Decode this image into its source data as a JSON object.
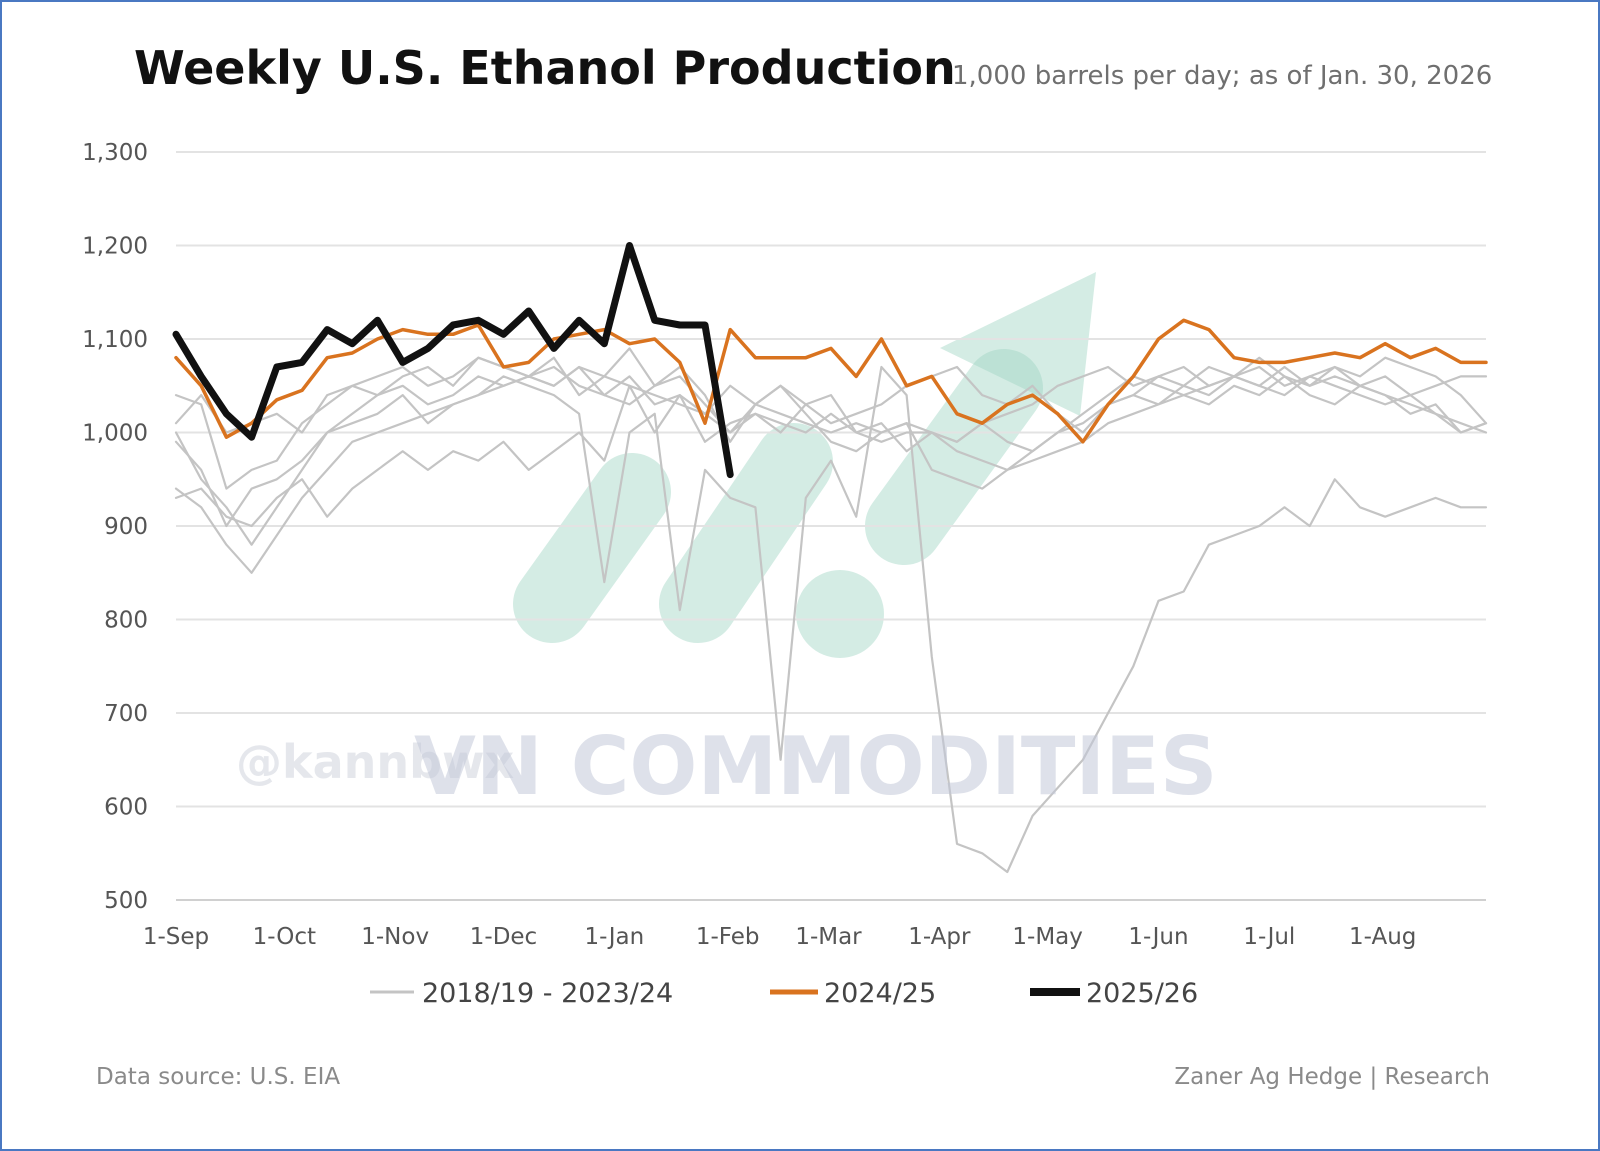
{
  "colors": {
    "history": "#c4c4c4",
    "y2024": "#d9731f",
    "y2025": "#111111",
    "grid": "#e3e3e3",
    "watermark_arrow": "#9fd4c4"
  },
  "watermark": {
    "brand": "VN COMMODITIES",
    "handle": "@kannbwx"
  },
  "chart_data": {
    "type": "line",
    "title": "Weekly U.S. Ethanol Production",
    "subtitle": "1,000 barrels per day; as of Jan. 30, 2026",
    "xlabel": "",
    "ylabel": "",
    "ylim": [
      500,
      1300
    ],
    "yticks": [
      500,
      600,
      700,
      800,
      900,
      1000,
      1100,
      1200,
      1300
    ],
    "ytick_labels": [
      "500",
      "600",
      "700",
      "800",
      "900",
      "1,000",
      "1,100",
      "1,200",
      "1,300"
    ],
    "x_unit": "week of marketing year (week 0 = 1-Sep)",
    "x_range": [
      0,
      52
    ],
    "xtick_positions": [
      0,
      4.3,
      8.7,
      13,
      17.4,
      21.9,
      25.9,
      30.3,
      34.6,
      39,
      43.4,
      47.9
    ],
    "xtick_labels": [
      "1-Sep",
      "1-Oct",
      "1-Nov",
      "1-Dec",
      "1-Jan",
      "1-Feb",
      "1-Mar",
      "1-Apr",
      "1-May",
      "1-Jun",
      "1-Jul",
      "1-Aug"
    ],
    "grid": true,
    "legend_position": "bottom",
    "legend": [
      "2018/19 - 2023/24",
      "2024/25",
      "2025/26"
    ],
    "series": [
      {
        "group": "history",
        "legend": "2018/19 - 2023/24",
        "x": [
          0,
          1,
          2,
          3,
          4,
          5,
          6,
          7,
          8,
          9,
          10,
          11,
          12,
          13,
          14,
          15,
          16,
          17,
          18,
          19,
          20,
          21,
          22,
          23,
          24,
          25,
          26,
          27,
          28,
          29,
          30,
          31,
          32,
          33,
          34,
          35,
          36,
          37,
          38,
          39,
          40,
          41,
          42,
          43,
          44,
          45,
          46,
          47,
          48,
          49,
          50,
          51,
          52
        ],
        "values": [
          1010,
          1040,
          1000,
          1010,
          1020,
          1000,
          1040,
          1050,
          1060,
          1070,
          1050,
          1060,
          1080,
          1070,
          1060,
          1050,
          1070,
          1060,
          1050,
          1040,
          1030,
          1020,
          1050,
          1030,
          1020,
          1010,
          1000,
          1010,
          1000,
          1010,
          1000,
          990,
          1010,
          1020,
          1030,
          1050,
          1060,
          1070,
          1050,
          1060,
          1070,
          1050,
          1060,
          1070,
          1050,
          1060,
          1070,
          1050,
          1060,
          1040,
          1050,
          1060,
          1060
        ]
      },
      {
        "group": "history",
        "x": [
          0,
          1,
          2,
          3,
          4,
          5,
          6,
          7,
          8,
          9,
          10,
          11,
          12,
          13,
          14,
          15,
          16,
          17,
          18,
          19,
          20,
          21,
          22,
          23,
          24,
          25,
          26,
          27,
          28,
          29,
          30,
          31,
          32,
          33,
          34,
          35,
          36,
          37,
          38,
          39,
          40,
          41,
          42,
          43,
          44,
          45,
          46,
          47,
          48,
          49,
          50,
          51,
          52
        ],
        "values": [
          990,
          960,
          900,
          940,
          950,
          970,
          1000,
          1020,
          1040,
          1050,
          1030,
          1040,
          1060,
          1050,
          1060,
          1070,
          1050,
          1040,
          1030,
          1050,
          1060,
          1030,
          1000,
          1020,
          1010,
          1000,
          1020,
          1000,
          990,
          1000,
          1000,
          980,
          970,
          960,
          970,
          980,
          990,
          1010,
          1020,
          1030,
          1050,
          1040,
          1060,
          1050,
          1040,
          1060,
          1050,
          1040,
          1030,
          1040,
          1020,
          1000,
          1010
        ]
      },
      {
        "group": "history",
        "x": [
          0,
          1,
          2,
          3,
          4,
          5,
          6,
          7,
          8,
          9,
          10,
          11,
          12,
          13,
          14,
          15,
          16,
          17,
          18,
          19,
          20,
          21,
          22,
          23,
          24,
          25,
          26,
          27,
          28,
          29,
          30,
          31,
          32,
          33,
          34,
          35,
          36,
          37,
          38,
          39,
          40,
          41,
          42,
          43,
          44,
          45,
          46,
          47,
          48,
          49,
          50,
          51,
          52
        ],
        "values": [
          940,
          920,
          880,
          850,
          890,
          930,
          960,
          990,
          1000,
          1010,
          1020,
          1030,
          1040,
          1050,
          1060,
          1050,
          1070,
          1040,
          1060,
          1030,
          1040,
          1020,
          1000,
          1030,
          1050,
          1020,
          990,
          980,
          1000,
          1010,
          960,
          950,
          940,
          960,
          980,
          1000,
          1010,
          1030,
          1040,
          1030,
          1040,
          1050,
          1060,
          1050,
          1070,
          1050,
          1060,
          1050,
          1040,
          1030,
          1020,
          1010,
          1000
        ]
      },
      {
        "group": "history",
        "x": [
          0,
          1,
          2,
          3,
          4,
          5,
          6,
          7,
          8,
          9,
          10,
          11,
          12,
          13,
          14,
          15,
          16,
          17,
          18,
          19,
          20,
          21,
          22,
          23,
          24,
          25,
          26,
          27,
          28,
          29,
          30,
          31,
          32,
          33,
          34,
          35,
          36,
          37,
          38,
          39,
          40,
          41,
          42,
          43,
          44,
          45,
          46,
          47,
          48,
          49,
          50,
          51,
          52
        ],
        "values": [
          930,
          940,
          910,
          900,
          930,
          950,
          910,
          940,
          960,
          980,
          960,
          980,
          970,
          990,
          960,
          980,
          1000,
          970,
          1050,
          1000,
          1040,
          990,
          1010,
          1020,
          1000,
          1030,
          1040,
          1000,
          1010,
          980,
          1000,
          990,
          1010,
          990,
          980,
          1000,
          1020,
          1040,
          1060,
          1050,
          1040,
          1030,
          1050,
          1040,
          1060,
          1040,
          1030,
          1050,
          1040,
          1020,
          1030,
          1000,
          1010
        ]
      },
      {
        "group": "history",
        "x": [
          0,
          1,
          2,
          3,
          4,
          5,
          6,
          7,
          8,
          9,
          10,
          11,
          12,
          13,
          14,
          15,
          16,
          17,
          18,
          19,
          20,
          21,
          22,
          23,
          24,
          25,
          26,
          27,
          28,
          29,
          30,
          31,
          32,
          33,
          34,
          35,
          36,
          37,
          38,
          39,
          40,
          41,
          42,
          43,
          44,
          45,
          46,
          47,
          48,
          49,
          50,
          51,
          52
        ],
        "values": [
          1040,
          1030,
          940,
          960,
          970,
          1010,
          1030,
          1050,
          1040,
          1060,
          1070,
          1050,
          1080,
          1070,
          1060,
          1080,
          1040,
          1060,
          1090,
          1050,
          1070,
          1040,
          990,
          1030,
          1050,
          1030,
          1010,
          1020,
          1030,
          1050,
          1060,
          1070,
          1040,
          1030,
          1050,
          1020,
          1000,
          1030,
          1040,
          1060,
          1050,
          1070,
          1060,
          1080,
          1060,
          1050,
          1070,
          1060,
          1080,
          1070,
          1060,
          1040,
          1010
        ]
      },
      {
        "group": "history",
        "x": [
          0,
          1,
          2,
          3,
          4,
          5,
          6,
          7,
          8,
          9,
          10,
          11,
          12,
          13,
          14,
          15,
          16,
          17,
          18,
          19,
          20,
          21,
          22,
          23,
          24,
          25,
          26,
          27,
          28,
          29,
          30,
          31,
          32,
          33,
          34,
          35,
          36,
          37,
          38,
          39,
          40,
          41,
          42,
          43,
          44,
          45,
          46,
          47,
          48,
          49,
          50,
          51,
          52
        ],
        "values": [
          1000,
          950,
          920,
          880,
          920,
          960,
          1000,
          1010,
          1020,
          1040,
          1010,
          1030,
          1040,
          1060,
          1050,
          1040,
          1020,
          840,
          1000,
          1020,
          810,
          960,
          930,
          920,
          650,
          930,
          970,
          910,
          1070,
          1040,
          760,
          560,
          550,
          530,
          590,
          620,
          650,
          700,
          750,
          820,
          830,
          880,
          890,
          900,
          920,
          900,
          950,
          920,
          910,
          920,
          930,
          920,
          920
        ]
      },
      {
        "group": "y2024",
        "legend": "2024/25",
        "x": [
          0,
          1,
          2,
          3,
          4,
          5,
          6,
          7,
          8,
          9,
          10,
          11,
          12,
          13,
          14,
          15,
          16,
          17,
          18,
          19,
          20,
          21,
          22,
          23,
          24,
          25,
          26,
          27,
          28,
          29,
          30,
          31,
          32,
          33,
          34,
          35,
          36,
          37,
          38,
          39,
          40,
          41,
          42,
          43,
          44,
          45,
          46,
          47,
          48,
          49,
          50,
          51,
          52
        ],
        "values": [
          1080,
          1050,
          995,
          1010,
          1035,
          1045,
          1080,
          1085,
          1100,
          1110,
          1105,
          1105,
          1115,
          1070,
          1075,
          1100,
          1105,
          1110,
          1095,
          1100,
          1075,
          1010,
          1110,
          1080,
          1080,
          1080,
          1090,
          1060,
          1100,
          1050,
          1060,
          1020,
          1010,
          1030,
          1040,
          1020,
          990,
          1030,
          1060,
          1100,
          1120,
          1110,
          1080,
          1075,
          1075,
          1080,
          1085,
          1080,
          1095,
          1080,
          1090,
          1075,
          1075
        ]
      },
      {
        "group": "y2025",
        "legend": "2025/26",
        "x": [
          0,
          1,
          2,
          3,
          4,
          5,
          6,
          7,
          8,
          9,
          10,
          11,
          12,
          13,
          14,
          15,
          16,
          17,
          18,
          19,
          20,
          21,
          22
        ],
        "values": [
          1105,
          1060,
          1020,
          995,
          1070,
          1075,
          1110,
          1095,
          1120,
          1075,
          1090,
          1115,
          1120,
          1105,
          1130,
          1090,
          1120,
          1095,
          1200,
          1120,
          1115,
          1115,
          955
        ]
      }
    ]
  },
  "footer": {
    "source": "Data source: U.S. EIA",
    "credit": "Zaner Ag Hedge | Research"
  }
}
